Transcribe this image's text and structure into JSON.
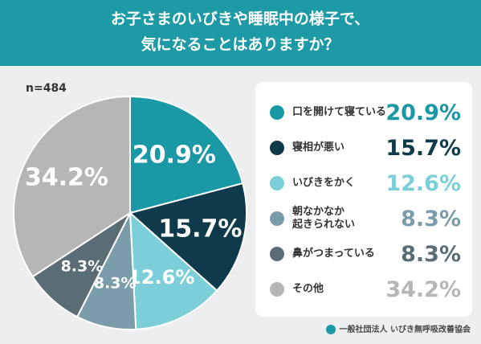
{
  "chart_data": {
    "type": "pie",
    "title": [
      "お子さまのいびきや睡眠中の様子で、",
      "気になることはありますか？"
    ],
    "note": "n=484",
    "categories": [
      "口を開けて寝ている",
      "寝相が悪い",
      "いびきをかく",
      "朝なかなか\n起きられない",
      "鼻がつまっている",
      "その他"
    ],
    "values": [
      20.9,
      15.7,
      12.6,
      8.3,
      8.3,
      34.2
    ],
    "value_labels": [
      "20.9%",
      "15.7%",
      "12.6%",
      "8.3%",
      "8.3%",
      "34.2%"
    ],
    "colors": [
      "#1b98a6",
      "#0e3a4b",
      "#7ccfd9",
      "#7b9dab",
      "#5b6d74",
      "#b4b6b8"
    ],
    "source": "一般社団法人 いびき無呼吸改善協会"
  }
}
